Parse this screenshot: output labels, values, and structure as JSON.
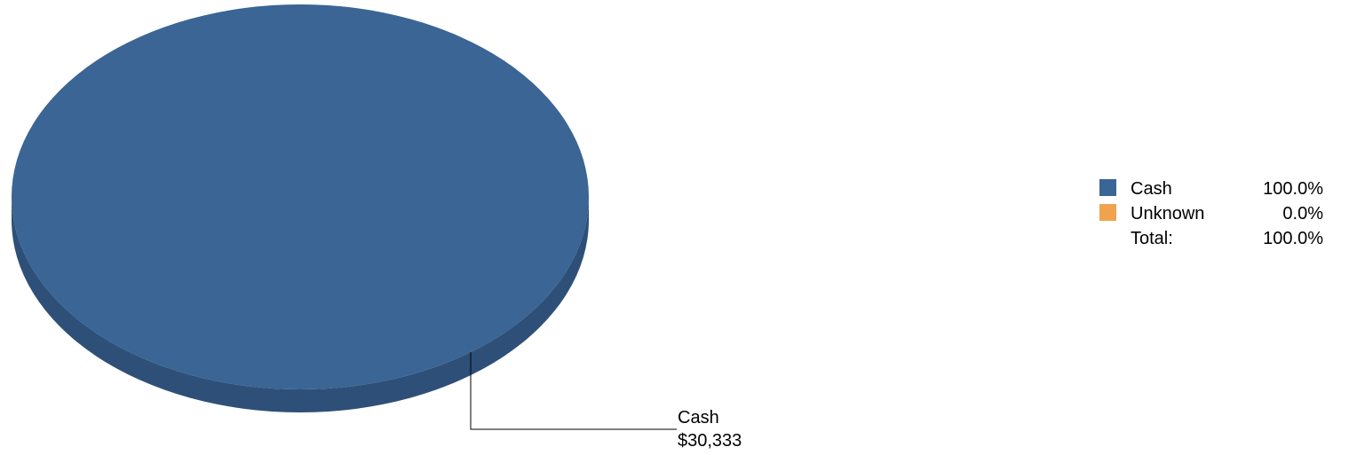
{
  "chart_data": {
    "type": "pie",
    "style": "3d",
    "slices": [
      {
        "name": "Cash",
        "value": 30333,
        "value_label": "$30,333",
        "percent": 100.0,
        "percent_label": "100.0%",
        "color": "#3a6595"
      },
      {
        "name": "Unknown",
        "value": 0,
        "percent": 0.0,
        "percent_label": "0.0%",
        "color": "#f0a34f"
      }
    ],
    "total": {
      "label": "Total:",
      "percent_label": "100.0%"
    },
    "legend_position": "right",
    "side_color": "#2e5078"
  }
}
